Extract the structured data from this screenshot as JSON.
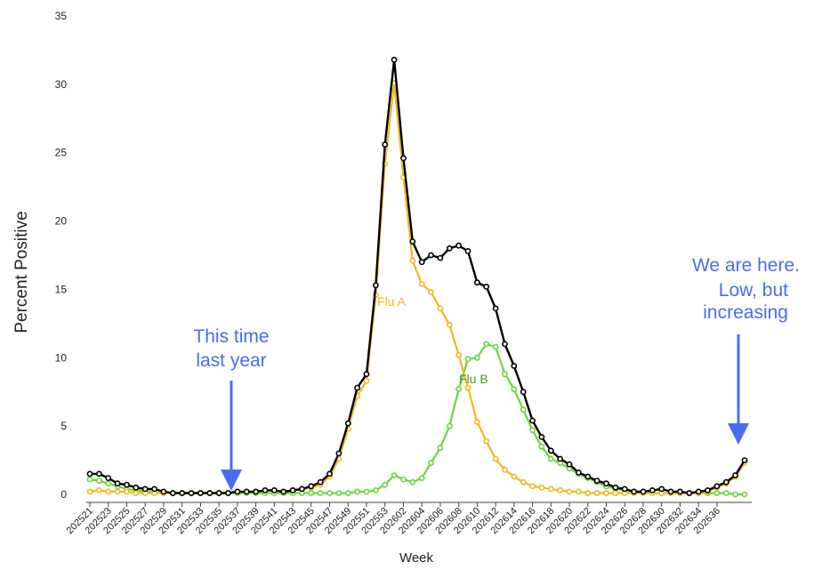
{
  "chart_data": {
    "type": "line",
    "xlabel": "Week",
    "ylabel": "Percent Positive",
    "ylim": [
      0,
      35
    ],
    "yticks": [
      0,
      5,
      10,
      15,
      20,
      25,
      30,
      35
    ],
    "grid": false,
    "x_tick_labels": [
      "202521",
      "202523",
      "202525",
      "202527",
      "202529",
      "202531",
      "202533",
      "202535",
      "202537",
      "202539",
      "202541",
      "202543",
      "202545",
      "202547",
      "202549",
      "202551",
      "202553",
      "202602",
      "202604",
      "202606",
      "202608",
      "202610",
      "202612",
      "202614",
      "202616",
      "202618",
      "202620",
      "202622",
      "202624",
      "202626",
      "202628",
      "202630",
      "202632",
      "202634",
      "202636"
    ],
    "series": [
      {
        "name": "",
        "color": "#000000",
        "values": [
          1.5,
          1.5,
          1.2,
          0.8,
          0.7,
          0.5,
          0.4,
          0.4,
          0.2,
          0.1,
          0.1,
          0.1,
          0.1,
          0.1,
          0.1,
          0.1,
          0.2,
          0.2,
          0.2,
          0.3,
          0.3,
          0.2,
          0.3,
          0.4,
          0.6,
          0.9,
          1.5,
          3.0,
          5.2,
          7.8,
          8.8,
          15.3,
          25.6,
          31.8,
          24.6,
          18.5,
          17.0,
          17.5,
          17.3,
          18.0,
          18.2,
          17.8,
          15.5,
          15.2,
          13.6,
          11.0,
          9.4,
          7.5,
          5.4,
          4.2,
          3.2,
          2.6,
          2.2,
          1.6,
          1.3,
          1.0,
          0.8,
          0.5,
          0.4,
          0.2,
          0.2,
          0.3,
          0.4,
          0.2,
          0.2,
          0.1,
          0.2,
          0.3,
          0.6,
          0.9,
          1.4,
          2.5
        ]
      },
      {
        "name": "Flu A",
        "color": "#f2b820",
        "values": [
          0.2,
          0.3,
          0.2,
          0.2,
          0.2,
          0.1,
          0.1,
          0.1,
          0.1,
          0.1,
          0.1,
          0.1,
          0.1,
          0.1,
          0.1,
          0.1,
          0.2,
          0.2,
          0.2,
          0.3,
          0.3,
          0.2,
          0.3,
          0.4,
          0.5,
          0.7,
          1.3,
          2.6,
          4.8,
          7.2,
          8.3,
          14.6,
          24.2,
          30.1,
          23.2,
          17.1,
          15.4,
          14.8,
          13.6,
          12.4,
          10.2,
          7.8,
          5.3,
          3.9,
          2.6,
          1.8,
          1.3,
          0.9,
          0.6,
          0.5,
          0.4,
          0.3,
          0.2,
          0.2,
          0.1,
          0.1,
          0.1,
          0.1,
          0.1,
          0.1,
          0.1,
          0.1,
          0.1,
          0.1,
          0.1,
          0.1,
          0.1,
          0.2,
          0.5,
          0.8,
          1.3,
          2.3
        ]
      },
      {
        "name": "Flu B",
        "color": "#6cd63c",
        "values": [
          1.1,
          1.0,
          0.8,
          0.6,
          0.4,
          0.3,
          0.2,
          0.2,
          0.1,
          0.1,
          0.1,
          0.1,
          0.1,
          0.1,
          0.1,
          0.1,
          0.1,
          0.1,
          0.1,
          0.1,
          0.1,
          0.1,
          0.1,
          0.1,
          0.1,
          0.1,
          0.1,
          0.1,
          0.1,
          0.2,
          0.2,
          0.3,
          0.7,
          1.4,
          1.1,
          0.9,
          1.2,
          2.3,
          3.4,
          5.0,
          7.7,
          9.9,
          10.0,
          11.0,
          10.8,
          8.8,
          7.7,
          6.2,
          4.7,
          3.5,
          2.6,
          2.3,
          1.9,
          1.5,
          1.2,
          0.9,
          0.6,
          0.4,
          0.3,
          0.2,
          0.2,
          0.1,
          0.1,
          0.1,
          0.1,
          0.1,
          0.1,
          0.1,
          0.1,
          0.1,
          0.0,
          0.0
        ]
      }
    ],
    "series_labels": [
      {
        "text": "Flu A",
        "color": "#f2b820"
      },
      {
        "text": "Flu B",
        "color": "#4a9a1e"
      }
    ],
    "annotations": [
      {
        "lines": [
          "This time",
          "last year"
        ],
        "color": "#4a6cf0"
      },
      {
        "lines": [
          "We are here.",
          "Low, but",
          "increasing"
        ],
        "color": "#4a6cf0"
      }
    ]
  }
}
